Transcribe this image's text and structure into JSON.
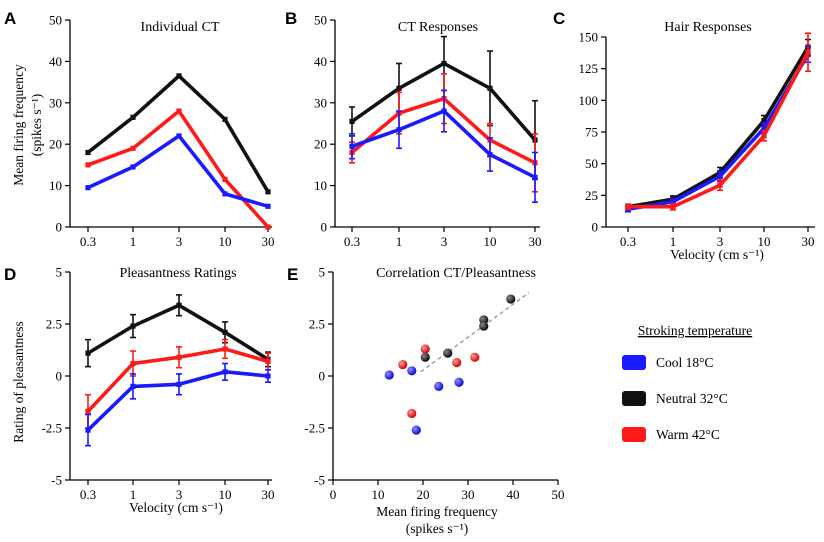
{
  "legend": {
    "title": "Stroking temperature",
    "items": [
      {
        "label": "Cool 18°C",
        "color": "#1a1aff"
      },
      {
        "label": "Neutral 32°C",
        "color": "#111111"
      },
      {
        "label": "Warm 42°C",
        "color": "#ff1a1a"
      }
    ]
  },
  "chart_data": [
    {
      "panel": "A",
      "type": "line",
      "title": "Individual CT",
      "ylabel": "Mean firing frequency",
      "ylabel2": "(spikes s⁻¹)",
      "xlabel": "",
      "x": [
        "0.3",
        "1",
        "3",
        "10",
        "30"
      ],
      "ylim": [
        0,
        50
      ],
      "yticks": [
        0,
        10,
        20,
        30,
        40,
        50
      ],
      "series": [
        {
          "name": "Neutral 32°C",
          "color": "#111111",
          "values": [
            18,
            26.5,
            36.5,
            26,
            8.5
          ],
          "err": [
            0.6,
            0.6,
            0.6,
            0.6,
            0.6
          ]
        },
        {
          "name": "Warm 42°C",
          "color": "#ff1a1a",
          "values": [
            15,
            19,
            28,
            11.5,
            0
          ],
          "err": [
            0.6,
            0.6,
            0.6,
            0.6,
            0.6
          ]
        },
        {
          "name": "Cool 18°C",
          "color": "#1a1aff",
          "values": [
            9.5,
            14.5,
            22,
            8,
            5
          ],
          "err": [
            0.6,
            0.6,
            0.6,
            0.6,
            0.6
          ]
        }
      ]
    },
    {
      "panel": "B",
      "type": "line",
      "title": "CT Responses",
      "ylabel": "",
      "xlabel": "",
      "x": [
        "0.3",
        "1",
        "3",
        "10",
        "30"
      ],
      "ylim": [
        0,
        50
      ],
      "yticks": [
        0,
        10,
        20,
        30,
        40,
        50
      ],
      "series": [
        {
          "name": "Neutral 32°C",
          "color": "#111111",
          "values": [
            25.5,
            33.5,
            39.5,
            33.5,
            21
          ],
          "err": [
            3.5,
            6,
            6.5,
            9,
            9.5
          ]
        },
        {
          "name": "Warm 42°C",
          "color": "#ff1a1a",
          "values": [
            18,
            27.5,
            31,
            21,
            15.5
          ],
          "err": [
            2.5,
            5,
            6,
            4,
            7
          ]
        },
        {
          "name": "Cool 18°C",
          "color": "#1a1aff",
          "values": [
            19.5,
            23.5,
            28,
            17.5,
            12
          ],
          "err": [
            3,
            4.5,
            5,
            4,
            6
          ]
        }
      ]
    },
    {
      "panel": "C",
      "type": "line",
      "title": "Hair Responses",
      "ylabel": "",
      "xlabel": "Velocity (cm s⁻¹)",
      "x": [
        "0.3",
        "1",
        "3",
        "10",
        "30"
      ],
      "ylim": [
        0,
        150
      ],
      "yticks": [
        0,
        25,
        50,
        75,
        100,
        125,
        150
      ],
      "series": [
        {
          "name": "Neutral 32°C",
          "color": "#111111",
          "values": [
            16,
            22,
            43,
            84,
            142
          ],
          "err": [
            2,
            2.5,
            4,
            4,
            6
          ]
        },
        {
          "name": "Cool 18°C",
          "color": "#1a1aff",
          "values": [
            14,
            20,
            40,
            78,
            136
          ],
          "err": [
            2,
            2.5,
            4,
            4,
            6
          ]
        },
        {
          "name": "Warm 42°C",
          "color": "#ff1a1a",
          "values": [
            16,
            16,
            33,
            72,
            138
          ],
          "err": [
            2,
            2.5,
            4,
            4,
            15
          ]
        }
      ]
    },
    {
      "panel": "D",
      "type": "line",
      "title": "Pleasantness Ratings",
      "ylabel": "Rating of pleasantness",
      "xlabel": "Velocity (cm s⁻¹)",
      "x": [
        "0.3",
        "1",
        "3",
        "10",
        "30"
      ],
      "ylim": [
        -5,
        5
      ],
      "yticks": [
        "-5",
        "-2.5",
        "0",
        "2.5",
        "5"
      ],
      "series": [
        {
          "name": "Neutral 32°C",
          "color": "#111111",
          "values": [
            1.1,
            2.4,
            3.4,
            2.1,
            0.8
          ],
          "err": [
            0.65,
            0.55,
            0.5,
            0.5,
            0.35
          ]
        },
        {
          "name": "Warm 42°C",
          "color": "#ff1a1a",
          "values": [
            -1.7,
            0.6,
            0.9,
            1.3,
            0.7
          ],
          "err": [
            0.8,
            0.6,
            0.5,
            0.45,
            0.4
          ]
        },
        {
          "name": "Cool 18°C",
          "color": "#1a1aff",
          "values": [
            -2.6,
            -0.5,
            -0.4,
            0.2,
            0
          ],
          "err": [
            0.75,
            0.6,
            0.5,
            0.4,
            0.3
          ]
        }
      ]
    },
    {
      "panel": "E",
      "type": "scatter",
      "title": "Correlation CT/Pleasantness",
      "ylabel": "",
      "xlabel": "Mean firing frequency",
      "xlabel2": "(spikes s⁻¹)",
      "xlim": [
        0,
        50
      ],
      "xticks": [
        0,
        10,
        20,
        30,
        40,
        50
      ],
      "ylim": [
        -5,
        5
      ],
      "yticks": [
        "-5",
        "-2.5",
        "0",
        "2.5",
        "5"
      ],
      "fit": {
        "x": [
          19.5,
          43.5
        ],
        "y": [
          0.2,
          4.0
        ]
      },
      "series": [
        {
          "name": "Cool 18°C",
          "color": "#1a1aff",
          "points": [
            [
              12.5,
              0.05
            ],
            [
              17.5,
              0.25
            ],
            [
              23.5,
              -0.5
            ],
            [
              28,
              -0.3
            ],
            [
              18.5,
              -2.6
            ]
          ]
        },
        {
          "name": "Neutral 32°C",
          "color": "#111111",
          "points": [
            [
              20.5,
              0.9
            ],
            [
              25.5,
              1.1
            ],
            [
              33.5,
              2.7
            ],
            [
              33.5,
              2.4
            ],
            [
              39.5,
              3.7
            ]
          ]
        },
        {
          "name": "Warm 42°C",
          "color": "#ff1a1a",
          "points": [
            [
              15.5,
              0.55
            ],
            [
              20.5,
              1.3
            ],
            [
              27.5,
              0.65
            ],
            [
              31.5,
              0.9
            ],
            [
              17.5,
              -1.8
            ]
          ]
        }
      ]
    }
  ]
}
